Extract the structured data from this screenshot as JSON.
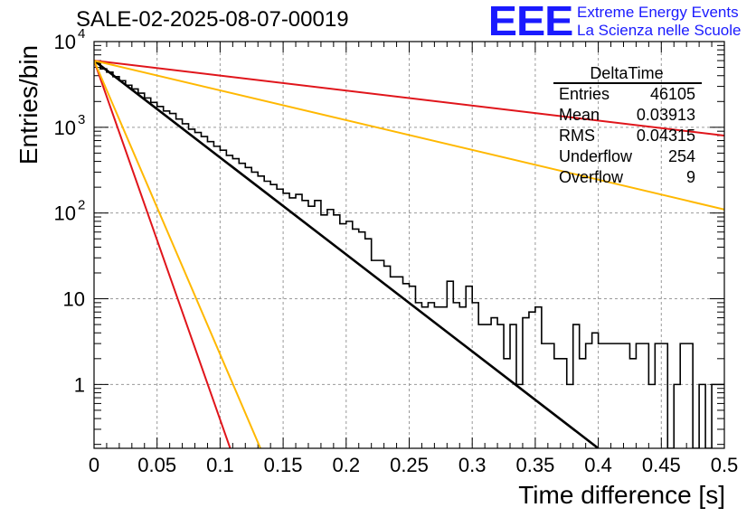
{
  "title": "SALE-02-2025-08-07-00019",
  "logo": {
    "mark": "EEE",
    "line1": "Extreme Energy Events",
    "line2": "La Scienza nelle Scuole"
  },
  "colors": {
    "histogram": "#000000",
    "fit_black": "#000000",
    "red": "#e0151b",
    "orange": "#ffb800",
    "logo": "#1a1aff",
    "grid": "#9a9a9a"
  },
  "stats_box": {
    "name": "DeltaTime",
    "rows": [
      {
        "label": "Entries",
        "value": "46105"
      },
      {
        "label": "Mean",
        "value": "0.03913"
      },
      {
        "label": "RMS",
        "value": "0.04315"
      },
      {
        "label": "Underflow",
        "value": "254"
      },
      {
        "label": "Overflow",
        "value": "9"
      }
    ]
  },
  "chart_data": {
    "type": "line",
    "title": "SALE-02-2025-08-07-00019",
    "xlabel": "Time difference [s]",
    "ylabel": "Entries/bin",
    "xlim": [
      0,
      0.5
    ],
    "ylim": [
      0.18,
      10000
    ],
    "yscale": "log",
    "grid": true,
    "x_ticks": [
      0,
      0.05,
      0.1,
      0.15,
      0.2,
      0.25,
      0.3,
      0.35,
      0.4,
      0.45,
      0.5
    ],
    "x_tick_labels": [
      "0",
      "0.05",
      "0.1",
      "0.15",
      "0.2",
      "0.25",
      "0.3",
      "0.35",
      "0.4",
      "0.45",
      "0.5"
    ],
    "y_ticks": [
      {
        "value": 1,
        "label": "1"
      },
      {
        "value": 10,
        "label": "10"
      },
      {
        "value": 100,
        "label": "10",
        "exp": "2"
      },
      {
        "value": 1000,
        "label": "10",
        "exp": "3"
      },
      {
        "value": 10000,
        "label": "10",
        "exp": "4"
      }
    ],
    "histogram": {
      "bin_width": 0.005,
      "values": [
        5600,
        4800,
        4400,
        3900,
        3500,
        3100,
        2800,
        2500,
        2200,
        1950,
        1750,
        1550,
        1450,
        1250,
        1100,
        950,
        870,
        780,
        680,
        600,
        540,
        470,
        430,
        380,
        340,
        300,
        270,
        235,
        215,
        190,
        170,
        150,
        165,
        140,
        120,
        140,
        95,
        110,
        95,
        75,
        80,
        65,
        60,
        50,
        28,
        28,
        24,
        18,
        18,
        15,
        14,
        9,
        8,
        9,
        8,
        8,
        16,
        9,
        8,
        14,
        9,
        5,
        5,
        6,
        5,
        2,
        5,
        1,
        6,
        7,
        8,
        3,
        3,
        2,
        2,
        1,
        5,
        2,
        3,
        4,
        3,
        3,
        3,
        3,
        3,
        2,
        3,
        3,
        1,
        3,
        3,
        0.1,
        1,
        3,
        3,
        0.1,
        1,
        0.1,
        1,
        1
      ]
    },
    "series": [
      {
        "color": "#000000",
        "x": [
          0,
          0.4
        ],
        "y": [
          6000,
          0.18
        ]
      },
      {
        "color": "#e0151b",
        "x": [
          0,
          0.5
        ],
        "y": [
          6000,
          800
        ]
      },
      {
        "color": "#ffb800",
        "x": [
          0,
          0.5
        ],
        "y": [
          6000,
          110
        ]
      },
      {
        "color": "#e0151b",
        "x": [
          0,
          0.108
        ],
        "y": [
          6000,
          0.18
        ]
      },
      {
        "color": "#ffb800",
        "x": [
          0,
          0.132
        ],
        "y": [
          6000,
          0.18
        ]
      }
    ]
  }
}
